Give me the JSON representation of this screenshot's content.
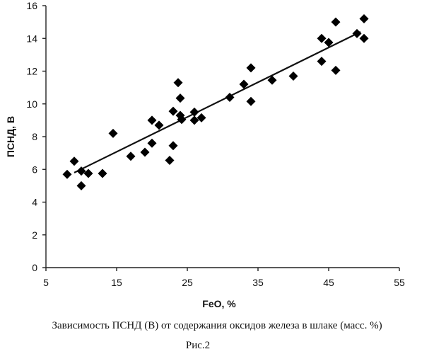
{
  "chart_data": {
    "type": "scatter",
    "xlabel": "FeO, %",
    "ylabel": "ПСНД, В",
    "xlim": [
      5,
      55
    ],
    "ylim": [
      0,
      16
    ],
    "xticks": [
      5,
      15,
      25,
      35,
      45,
      55
    ],
    "yticks": [
      0,
      2,
      4,
      6,
      8,
      10,
      12,
      14,
      16
    ],
    "grid": false,
    "legend": false,
    "marker": "diamond",
    "trendline": {
      "type": "linear",
      "x": [
        9,
        49.5
      ],
      "y": [
        5.8,
        14.4
      ]
    },
    "points": [
      {
        "x": 8.0,
        "y": 5.7
      },
      {
        "x": 9.0,
        "y": 6.5
      },
      {
        "x": 10.0,
        "y": 5.0
      },
      {
        "x": 10.0,
        "y": 5.9
      },
      {
        "x": 11.0,
        "y": 5.75
      },
      {
        "x": 13.0,
        "y": 5.75
      },
      {
        "x": 14.5,
        "y": 8.2
      },
      {
        "x": 17.0,
        "y": 6.8
      },
      {
        "x": 19.0,
        "y": 7.05
      },
      {
        "x": 20.0,
        "y": 9.0
      },
      {
        "x": 20.0,
        "y": 7.6
      },
      {
        "x": 21.0,
        "y": 8.7
      },
      {
        "x": 22.5,
        "y": 6.55
      },
      {
        "x": 23.0,
        "y": 7.45
      },
      {
        "x": 23.0,
        "y": 9.55
      },
      {
        "x": 23.7,
        "y": 11.3
      },
      {
        "x": 24.0,
        "y": 10.35
      },
      {
        "x": 24.0,
        "y": 9.3
      },
      {
        "x": 24.2,
        "y": 9.05
      },
      {
        "x": 26.0,
        "y": 9.5
      },
      {
        "x": 26.0,
        "y": 9.0
      },
      {
        "x": 27.0,
        "y": 9.15
      },
      {
        "x": 31.0,
        "y": 10.4
      },
      {
        "x": 33.0,
        "y": 11.2
      },
      {
        "x": 34.0,
        "y": 10.15
      },
      {
        "x": 34.0,
        "y": 12.2
      },
      {
        "x": 37.0,
        "y": 11.45
      },
      {
        "x": 40.0,
        "y": 11.7
      },
      {
        "x": 44.0,
        "y": 14.0
      },
      {
        "x": 44.0,
        "y": 12.6
      },
      {
        "x": 45.0,
        "y": 13.75
      },
      {
        "x": 46.0,
        "y": 15.0
      },
      {
        "x": 46.0,
        "y": 12.05
      },
      {
        "x": 49.0,
        "y": 14.3
      },
      {
        "x": 50.0,
        "y": 15.2
      },
      {
        "x": 50.0,
        "y": 14.0
      }
    ]
  },
  "caption": {
    "line1": "Зависимость ПСНД (В) от содержания оксидов железа в шлаке (масс. %)",
    "line2": "Рис.2"
  }
}
